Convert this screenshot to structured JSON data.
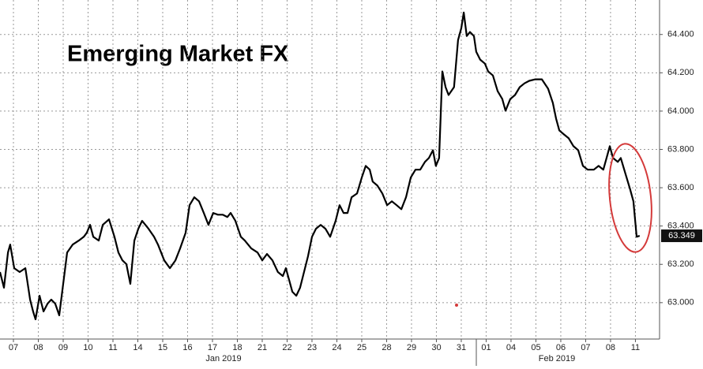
{
  "chart_data": {
    "type": "line",
    "title": "Emerging Market FX",
    "x_group_labels": [
      "Jan 2019",
      "Feb 2019"
    ],
    "color": "#000000",
    "grid": true,
    "last_value": 63.349,
    "xlim": [
      -0.54,
      25.97
    ],
    "ylim": [
      62.81,
      64.58
    ],
    "yticks": [
      {
        "value": 63,
        "label": "63.000"
      },
      {
        "value": 63.2,
        "label": "63.200"
      },
      {
        "value": 63.4,
        "label": "63.400"
      },
      {
        "value": 63.6,
        "label": "63.600"
      },
      {
        "value": 63.8,
        "label": "63.800"
      },
      {
        "value": 64,
        "label": "64.000"
      },
      {
        "value": 64.2,
        "label": "64.200"
      },
      {
        "value": 64.4,
        "label": "64.400"
      }
    ],
    "xticks": [
      {
        "value": 0,
        "label": "07"
      },
      {
        "value": 1,
        "label": "08"
      },
      {
        "value": 2,
        "label": "09"
      },
      {
        "value": 3,
        "label": "10"
      },
      {
        "value": 4,
        "label": "11"
      },
      {
        "value": 5,
        "label": "14"
      },
      {
        "value": 6,
        "label": "15"
      },
      {
        "value": 7,
        "label": "16"
      },
      {
        "value": 8,
        "label": "17"
      },
      {
        "value": 9,
        "label": "18"
      },
      {
        "value": 10,
        "label": "21"
      },
      {
        "value": 11,
        "label": "22"
      },
      {
        "value": 12,
        "label": "23"
      },
      {
        "value": 13,
        "label": "24"
      },
      {
        "value": 14,
        "label": "25"
      },
      {
        "value": 15,
        "label": "28"
      },
      {
        "value": 16,
        "label": "29"
      },
      {
        "value": 17,
        "label": "30"
      },
      {
        "value": 18,
        "label": "31"
      },
      {
        "value": 19,
        "label": "01"
      },
      {
        "value": 20,
        "label": "04"
      },
      {
        "value": 21,
        "label": "05"
      },
      {
        "value": 22,
        "label": "06"
      },
      {
        "value": 23,
        "label": "07"
      },
      {
        "value": 24,
        "label": "08"
      },
      {
        "value": 25,
        "label": "11"
      }
    ],
    "x": [
      -0.54,
      -0.38,
      -0.22,
      -0.13,
      0.03,
      0.25,
      0.48,
      0.67,
      0.79,
      0.89,
      1.05,
      1.21,
      1.37,
      1.52,
      1.68,
      1.84,
      1.94,
      2.06,
      2.16,
      2.38,
      2.63,
      2.83,
      2.95,
      3.08,
      3.21,
      3.43,
      3.59,
      3.84,
      4.06,
      4.22,
      4.38,
      4.54,
      4.7,
      4.86,
      5.02,
      5.17,
      5.43,
      5.65,
      5.81,
      6.06,
      6.29,
      6.51,
      6.7,
      6.92,
      7.08,
      7.27,
      7.46,
      7.65,
      7.84,
      8.03,
      8.22,
      8.41,
      8.6,
      8.73,
      8.92,
      9.14,
      9.3,
      9.56,
      9.81,
      10.0,
      10.19,
      10.41,
      10.63,
      10.83,
      10.95,
      11.08,
      11.21,
      11.37,
      11.52,
      11.68,
      11.84,
      12.0,
      12.16,
      12.35,
      12.54,
      12.73,
      12.95,
      13.11,
      13.27,
      13.43,
      13.59,
      13.81,
      14.0,
      14.16,
      14.32,
      14.44,
      14.63,
      14.83,
      15.02,
      15.21,
      15.4,
      15.59,
      15.78,
      15.97,
      16.16,
      16.35,
      16.54,
      16.7,
      16.86,
      16.98,
      17.11,
      17.24,
      17.37,
      17.49,
      17.71,
      17.87,
      18.0,
      18.1,
      18.22,
      18.35,
      18.51,
      18.6,
      18.76,
      18.95,
      19.08,
      19.27,
      19.46,
      19.65,
      19.78,
      19.97,
      20.16,
      20.35,
      20.54,
      20.73,
      20.98,
      21.24,
      21.49,
      21.68,
      21.81,
      21.94,
      22.13,
      22.32,
      22.51,
      22.7,
      22.89,
      23.08,
      23.33,
      23.52,
      23.71,
      23.84,
      23.97,
      24.1,
      24.29,
      24.41,
      24.6,
      24.79,
      24.92,
      25.05,
      25.17
    ],
    "values": [
      63.16,
      63.078,
      63.262,
      63.303,
      63.18,
      63.16,
      63.18,
      63.016,
      62.954,
      62.913,
      63.036,
      62.954,
      62.995,
      63.016,
      62.995,
      62.934,
      63.036,
      63.16,
      63.262,
      63.303,
      63.324,
      63.344,
      63.365,
      63.406,
      63.344,
      63.324,
      63.406,
      63.435,
      63.344,
      63.262,
      63.221,
      63.201,
      63.098,
      63.324,
      63.386,
      63.427,
      63.386,
      63.344,
      63.303,
      63.221,
      63.18,
      63.221,
      63.283,
      63.365,
      63.509,
      63.55,
      63.529,
      63.468,
      63.406,
      63.468,
      63.459,
      63.459,
      63.447,
      63.468,
      63.427,
      63.344,
      63.324,
      63.283,
      63.262,
      63.221,
      63.254,
      63.221,
      63.16,
      63.139,
      63.18,
      63.119,
      63.057,
      63.036,
      63.078,
      63.16,
      63.242,
      63.344,
      63.386,
      63.406,
      63.386,
      63.344,
      63.427,
      63.509,
      63.468,
      63.468,
      63.55,
      63.57,
      63.653,
      63.714,
      63.694,
      63.632,
      63.611,
      63.57,
      63.509,
      63.529,
      63.509,
      63.488,
      63.55,
      63.653,
      63.694,
      63.694,
      63.735,
      63.755,
      63.796,
      63.714,
      63.755,
      64.207,
      64.125,
      64.084,
      64.125,
      64.371,
      64.433,
      64.515,
      64.392,
      64.413,
      64.392,
      64.31,
      64.269,
      64.248,
      64.207,
      64.186,
      64.104,
      64.063,
      64.002,
      64.063,
      64.084,
      64.125,
      64.145,
      64.158,
      64.166,
      64.166,
      64.117,
      64.043,
      63.961,
      63.899,
      63.878,
      63.858,
      63.817,
      63.796,
      63.714,
      63.694,
      63.694,
      63.714,
      63.694,
      63.755,
      63.817,
      63.755,
      63.735,
      63.755,
      63.673,
      63.591,
      63.529,
      63.344,
      63.349
    ]
  }
}
